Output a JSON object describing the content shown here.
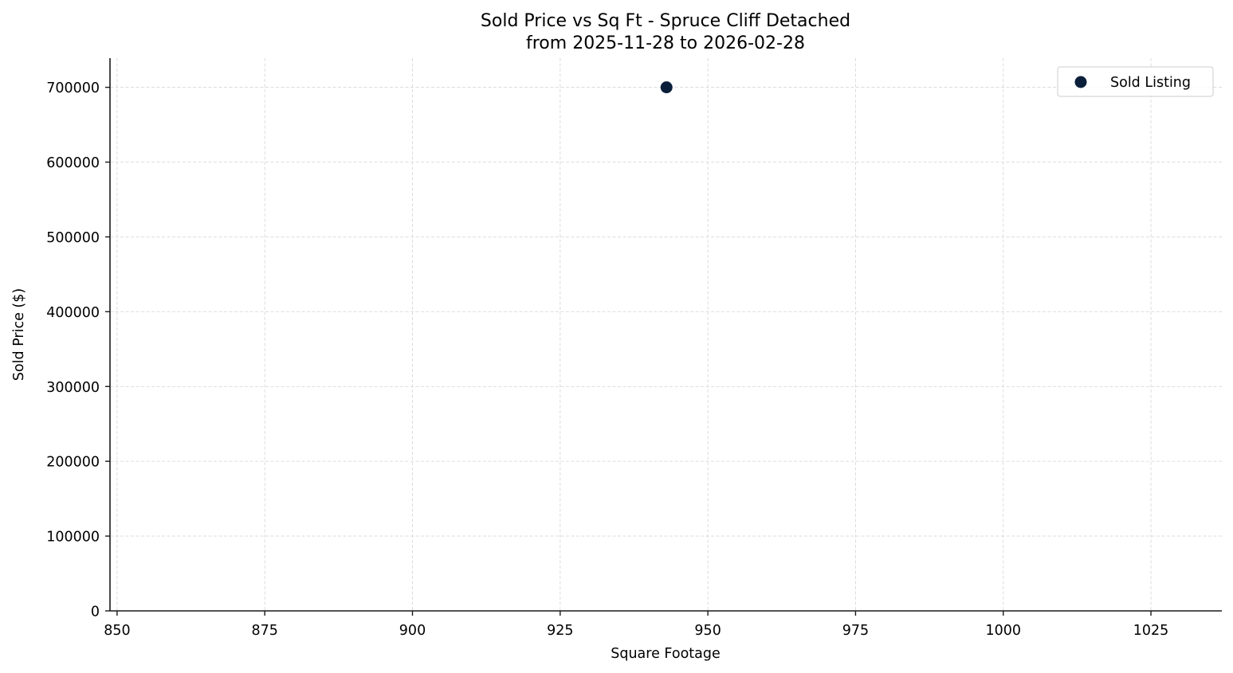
{
  "chart_data": {
    "type": "scatter",
    "title": "Sold Price vs Sq Ft - Spruce Cliff Detached",
    "subtitle": "from 2025-11-28 to 2026-02-28",
    "xlabel": "Square Footage",
    "ylabel": "Sold Price ($)",
    "xlim": [
      848.8,
      1037
    ],
    "ylim": [
      0,
      739000
    ],
    "xticks": [
      850,
      875,
      900,
      925,
      950,
      975,
      1000,
      1025
    ],
    "xtick_labels": [
      "850",
      "875",
      "900",
      "925",
      "950",
      "975",
      "1000",
      "1025"
    ],
    "yticks": [
      0,
      100000,
      200000,
      300000,
      400000,
      500000,
      600000,
      700000
    ],
    "ytick_labels": [
      "0",
      "100000",
      "200000",
      "300000",
      "400000",
      "500000",
      "600000",
      "700000"
    ],
    "grid": true,
    "legend_position": "upper right",
    "series": [
      {
        "name": "Sold Listing",
        "color": "#0b1f3a",
        "points": [
          {
            "x": 943,
            "y": 700000
          }
        ]
      }
    ]
  },
  "legend": {
    "items": [
      {
        "label": "Sold Listing",
        "color": "#0b1f3a"
      }
    ]
  }
}
